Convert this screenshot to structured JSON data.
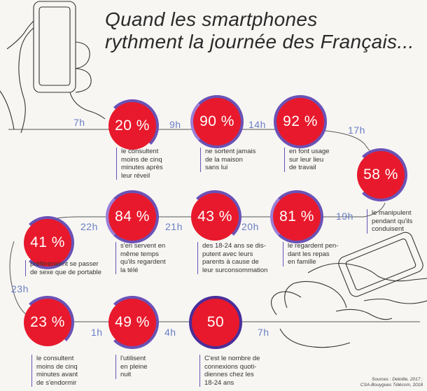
{
  "title": {
    "line1": "Quand les smartphones",
    "line2": "rythment la journée des Français..."
  },
  "colors": {
    "red": "#e8192c",
    "purple": "#6a52b6",
    "time": "#6a7ec4"
  },
  "items": [
    {
      "value": "20 %",
      "caption": [
        "le consultent",
        "moins de cinq",
        "minutes après",
        "leur réveil"
      ]
    },
    {
      "value": "90 %",
      "caption": [
        "ne sortent jamais",
        "de la maison",
        "sans lui"
      ]
    },
    {
      "value": "92 %",
      "caption": [
        "en font usage",
        "sur leur lieu",
        "de travail"
      ]
    },
    {
      "value": "58 %",
      "caption": [
        "le manipulent",
        "pendant qu'ils",
        "conduisent"
      ]
    },
    {
      "value": "81 %",
      "caption": [
        "le regardent pen-",
        "dant les repas",
        "en famille"
      ]
    },
    {
      "value": "43 %",
      "caption": [
        "des 18-24 ans se dis-",
        "putent avec leurs",
        "parents à cause de",
        "leur surconsommation"
      ]
    },
    {
      "value": "84 %",
      "caption": [
        "s'en servent en",
        "même temps",
        "qu'ils regardent",
        "la télé"
      ]
    },
    {
      "value": "41 %",
      "caption": [
        "préféreraient se passer",
        "de sexe que de portable"
      ]
    },
    {
      "value": "23 %",
      "caption": [
        "le consultent",
        "moins de cinq",
        "minutes avant",
        "de s'endormir"
      ]
    },
    {
      "value": "49 %",
      "caption": [
        "l'utilisent",
        "en pleine",
        "nuit"
      ]
    },
    {
      "value": "50",
      "caption": [
        "C'est le nombre de",
        "connexions quoti-",
        "diennes chez les",
        "18-24 ans"
      ]
    }
  ],
  "times": [
    "7h",
    "9h",
    "14h",
    "17h",
    "19h",
    "20h",
    "21h",
    "22h",
    "23h",
    "1h",
    "4h",
    "7h"
  ],
  "sources": {
    "line1": "Sources : Deloitte, 2017 ;",
    "line2": "CSA-Bouygues Télécom, 2018"
  }
}
